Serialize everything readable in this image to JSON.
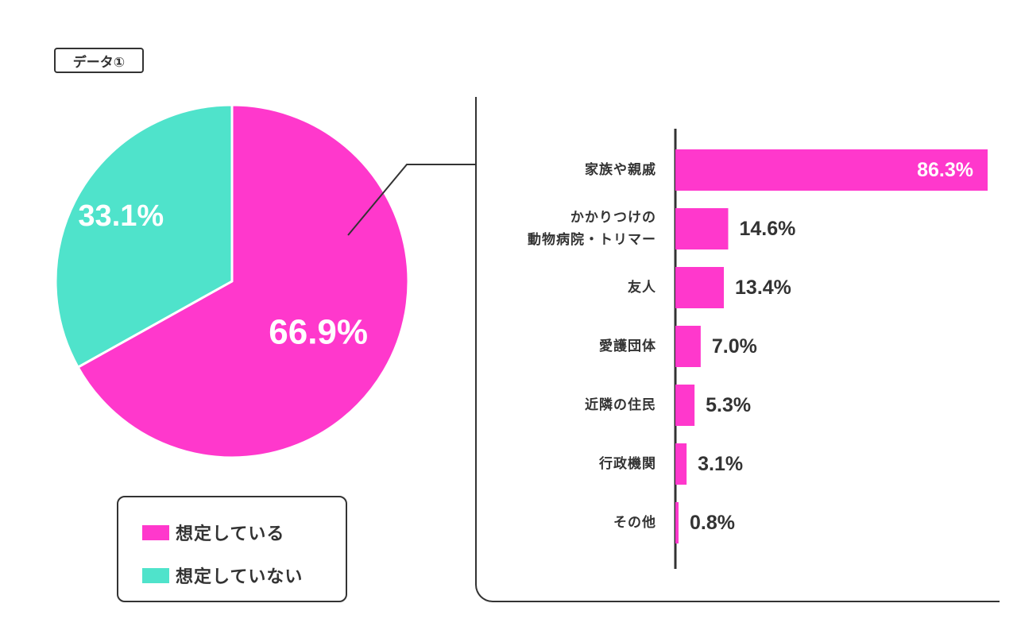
{
  "badge": "データ①",
  "colors": {
    "pink": "#ff38cc",
    "teal": "#4fe3cb",
    "ink": "#333333"
  },
  "chart_data": [
    {
      "type": "pie",
      "slices": [
        {
          "name": "想定している",
          "value": 66.9,
          "label": "66.9%",
          "color": "#ff38cc"
        },
        {
          "name": "想定していない",
          "value": 33.1,
          "label": "33.1%",
          "color": "#4fe3cb"
        }
      ],
      "legend": {
        "placement": "bottom",
        "items": [
          {
            "label": "想定している",
            "color": "#ff38cc"
          },
          {
            "label": "想定していない",
            "color": "#4fe3cb"
          }
        ]
      }
    },
    {
      "type": "bar",
      "orientation": "horizontal",
      "categories": [
        [
          "家族や親戚"
        ],
        [
          "かかりつけの",
          "動物病院・トリマー"
        ],
        [
          "友人"
        ],
        [
          "愛護団体"
        ],
        [
          "近隣の住民"
        ],
        [
          "行政機関"
        ],
        [
          "その他"
        ]
      ],
      "values": [
        86.3,
        14.6,
        13.4,
        7.0,
        5.3,
        3.1,
        0.8
      ],
      "value_labels": [
        "86.3%",
        "14.6%",
        "13.4%",
        "7.0%",
        "5.3%",
        "3.1%",
        "0.8%"
      ],
      "color": "#ff38cc",
      "xlim": [
        0,
        86.3
      ]
    }
  ]
}
